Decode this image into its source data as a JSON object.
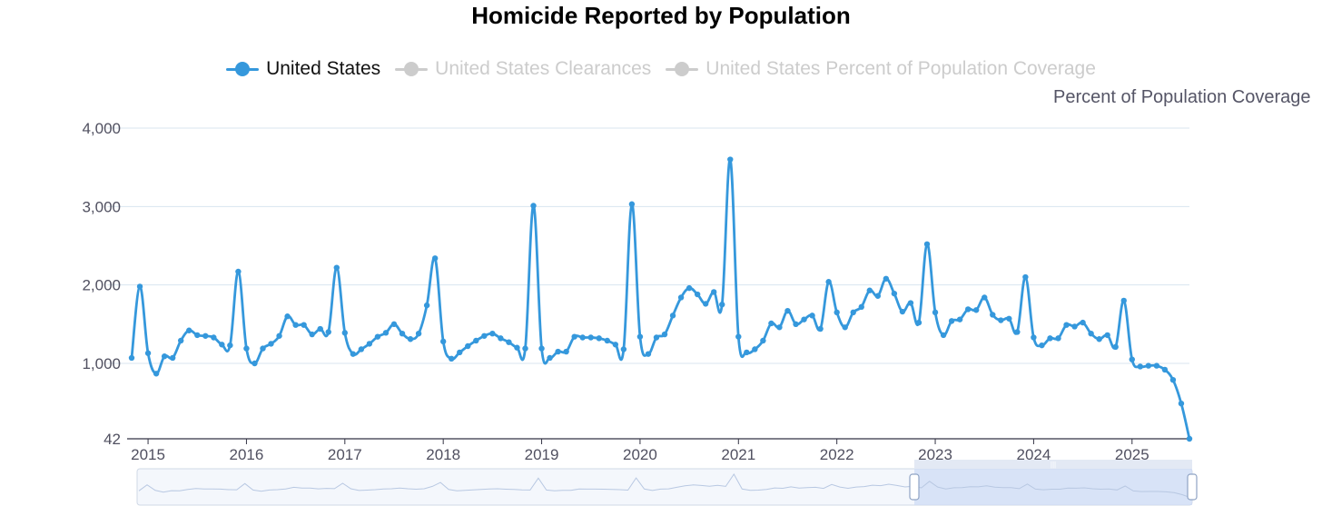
{
  "chart_data": {
    "type": "line",
    "title": "Homicide Reported by Population",
    "legend": [
      {
        "name": "United States",
        "active": true
      },
      {
        "name": "United States Clearances",
        "active": false
      },
      {
        "name": "United States Percent of Population Coverage",
        "active": false
      }
    ],
    "y2_title": "Percent of Population Coverage",
    "y_ticks": [
      "4,000",
      "3,000",
      "2,000",
      "1,000",
      "42"
    ],
    "x_ticks": [
      "2015",
      "2016",
      "2017",
      "2018",
      "2019",
      "2020",
      "2021",
      "2022",
      "2023",
      "2024",
      "2025"
    ],
    "ylim": [
      42,
      4000
    ],
    "x_start": "2014-11",
    "series": [
      {
        "name": "United States",
        "color": "#3598dc",
        "values": [
          1070,
          1980,
          1130,
          870,
          1090,
          1070,
          1290,
          1420,
          1360,
          1350,
          1330,
          1240,
          1230,
          2170,
          1190,
          1000,
          1190,
          1250,
          1350,
          1600,
          1490,
          1490,
          1370,
          1440,
          1400,
          2220,
          1390,
          1120,
          1180,
          1250,
          1340,
          1390,
          1500,
          1380,
          1310,
          1380,
          1740,
          2340,
          1280,
          1060,
          1140,
          1220,
          1290,
          1350,
          1380,
          1320,
          1270,
          1200,
          1190,
          3010,
          1190,
          1070,
          1150,
          1150,
          1340,
          1330,
          1330,
          1320,
          1290,
          1240,
          1180,
          3030,
          1340,
          1120,
          1330,
          1370,
          1610,
          1840,
          1960,
          1880,
          1760,
          1910,
          1750,
          3600,
          1340,
          1140,
          1180,
          1290,
          1510,
          1460,
          1670,
          1500,
          1560,
          1610,
          1440,
          2040,
          1650,
          1460,
          1650,
          1720,
          1930,
          1860,
          2080,
          1890,
          1660,
          1770,
          1520,
          2520,
          1650,
          1360,
          1540,
          1560,
          1690,
          1680,
          1840,
          1620,
          1550,
          1570,
          1400,
          2100,
          1330,
          1230,
          1320,
          1320,
          1490,
          1470,
          1520,
          1380,
          1310,
          1360,
          1210,
          1800,
          1050,
          960,
          970,
          970,
          920,
          790,
          490,
          42
        ]
      }
    ]
  }
}
